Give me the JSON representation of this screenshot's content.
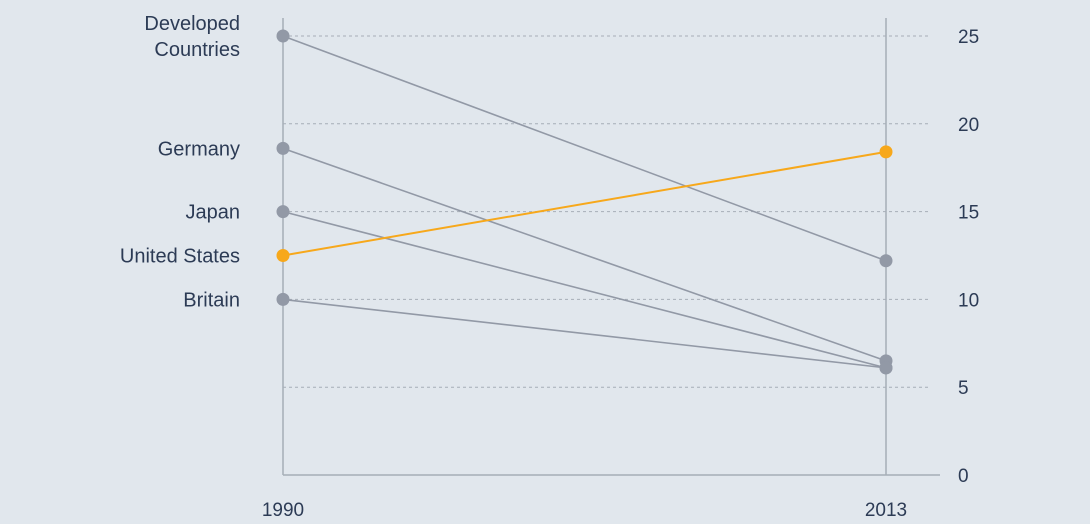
{
  "colors": {
    "background": "#e1e7ed",
    "series_gray": "#9299a6",
    "highlight_orange": "#f7a81b",
    "text": "#2c3b55",
    "grid": "#a6aeb7"
  },
  "chart_data": {
    "type": "line",
    "chart_style": "slope",
    "x": [
      "1990",
      "2013"
    ],
    "ylim": [
      0,
      25
    ],
    "yticks": [
      0,
      5,
      10,
      15,
      20,
      25
    ],
    "grid": "horizontal dashed",
    "y_axis_position": "right",
    "series": [
      {
        "name": "Developed Countries",
        "label_lines": [
          "Developed",
          "Countries"
        ],
        "values": [
          25,
          12.2
        ],
        "highlight": false
      },
      {
        "name": "Germany",
        "label_lines": [
          "Germany"
        ],
        "values": [
          18.6,
          6.5
        ],
        "highlight": false
      },
      {
        "name": "Japan",
        "label_lines": [
          "Japan"
        ],
        "values": [
          15,
          6.1
        ],
        "highlight": false
      },
      {
        "name": "United States",
        "label_lines": [
          "United States"
        ],
        "values": [
          12.5,
          18.4
        ],
        "highlight": true
      },
      {
        "name": "Britain",
        "label_lines": [
          "Britain"
        ],
        "values": [
          10,
          6.1
        ],
        "highlight": false
      }
    ]
  }
}
